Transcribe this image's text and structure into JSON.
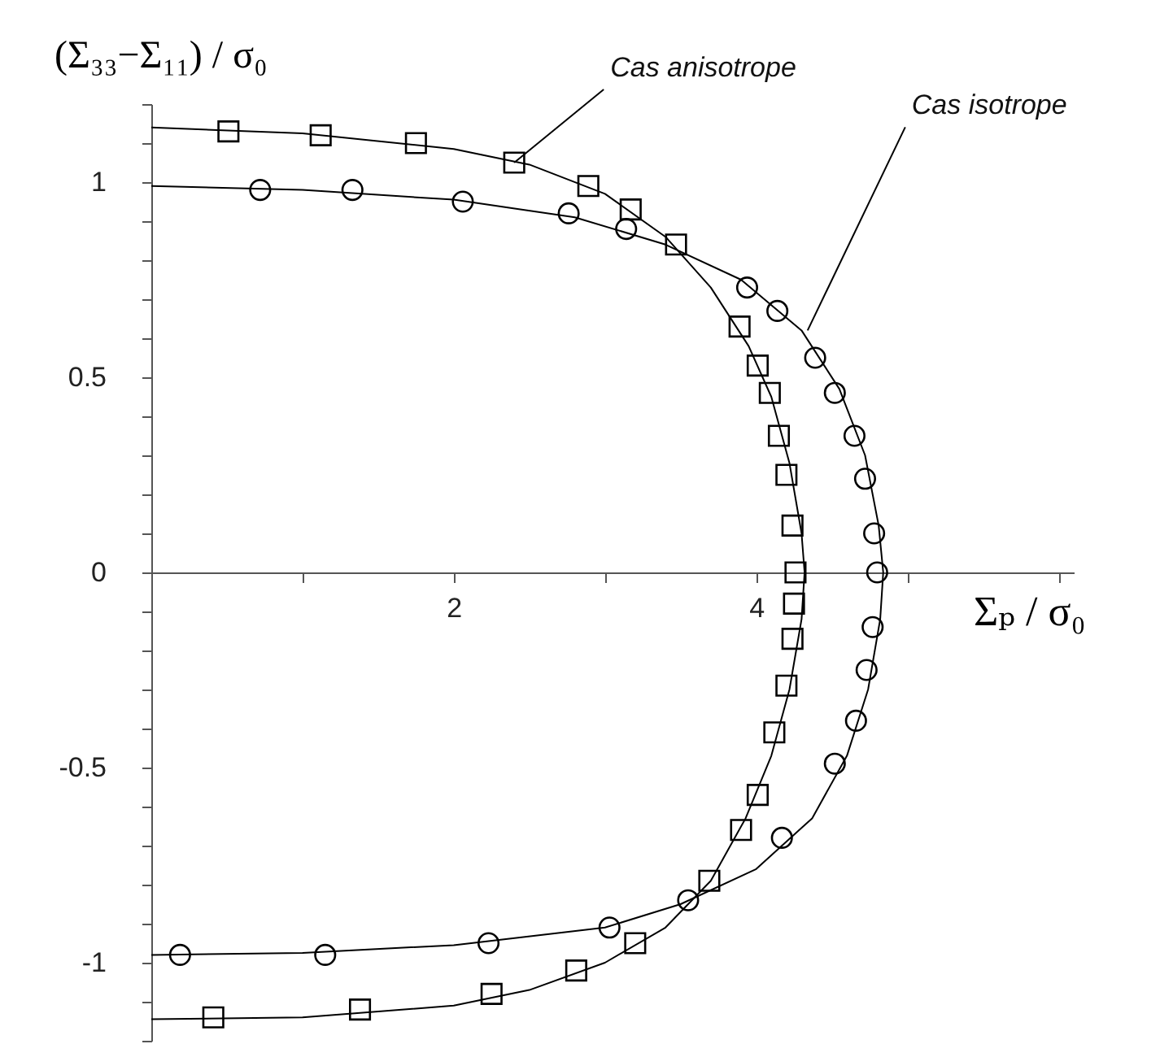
{
  "chart_data": {
    "type": "line",
    "xlabel": "Σₚ / σ₀",
    "ylabel": "(Σ₃₃−Σ₁₁) / σ₀",
    "xlim": [
      0,
      6.1
    ],
    "ylim": [
      -1.2,
      1.2
    ],
    "xticks": [
      {
        "value": 1,
        "label": null
      },
      2,
      {
        "value": 3,
        "label": null
      },
      4,
      {
        "value": 5,
        "label": null
      },
      {
        "value": 6,
        "label": null
      }
    ],
    "yticks": [
      {
        "value": -1.2,
        "label": null
      },
      {
        "value": -1.1,
        "label": null
      },
      -1,
      {
        "value": -0.9,
        "label": null
      },
      {
        "value": -0.8,
        "label": null
      },
      {
        "value": -0.7,
        "label": null
      },
      {
        "value": -0.6,
        "label": null
      },
      -0.5,
      {
        "value": -0.4,
        "label": null
      },
      {
        "value": -0.3,
        "label": null
      },
      {
        "value": -0.2,
        "label": null
      },
      {
        "value": -0.1,
        "label": null
      },
      0,
      {
        "value": 0.1,
        "label": null
      },
      {
        "value": 0.2,
        "label": null
      },
      {
        "value": 0.3,
        "label": null
      },
      {
        "value": 0.4,
        "label": null
      },
      0.5,
      {
        "value": 0.6,
        "label": null
      },
      {
        "value": 0.7,
        "label": null
      },
      {
        "value": 0.8,
        "label": null
      },
      {
        "value": 0.9,
        "label": null
      },
      1,
      {
        "value": 1.1,
        "label": null
      },
      {
        "value": 1.2,
        "label": null
      }
    ],
    "grid": false,
    "series": [
      {
        "type": "line",
        "color": "#000000",
        "x": [
          0,
          1,
          2,
          2.5,
          3,
          3.4,
          3.7,
          3.95,
          4.1,
          4.22,
          4.3,
          4.32,
          4.3,
          4.22,
          4.1,
          3.93,
          3.7,
          3.4,
          3,
          2.5,
          2,
          1,
          0
        ],
        "values": [
          1.14,
          1.125,
          1.085,
          1.045,
          0.97,
          0.86,
          0.73,
          0.58,
          0.45,
          0.28,
          0.1,
          0,
          -0.12,
          -0.3,
          -0.47,
          -0.63,
          -0.79,
          -0.91,
          -1.0,
          -1.07,
          -1.11,
          -1.14,
          -1.145
        ]
      },
      {
        "type": "scatter",
        "marker": "square",
        "color": "#000000",
        "x": [
          0.51,
          1.12,
          1.75,
          2.4,
          2.89,
          3.17,
          3.47,
          3.89,
          4.01,
          4.09,
          4.15,
          4.2,
          4.24,
          4.26,
          4.25,
          4.24,
          4.2,
          4.12,
          4.01,
          3.9,
          3.69,
          3.2,
          2.81,
          2.25,
          1.38,
          0.41
        ],
        "values": [
          1.13,
          1.12,
          1.1,
          1.05,
          0.99,
          0.93,
          0.84,
          0.63,
          0.53,
          0.46,
          0.35,
          0.25,
          0.12,
          0,
          -0.08,
          -0.17,
          -0.29,
          -0.41,
          -0.57,
          -0.66,
          -0.79,
          -0.95,
          -1.02,
          -1.08,
          -1.12,
          -1.14
        ]
      },
      {
        "type": "line",
        "color": "#000000",
        "x": [
          0,
          1,
          2,
          2.8,
          3.4,
          3.9,
          4.3,
          4.55,
          4.72,
          4.81,
          4.84,
          4.82,
          4.74,
          4.6,
          4.37,
          4.0,
          3.5,
          3,
          2,
          1,
          0
        ],
        "values": [
          0.99,
          0.98,
          0.955,
          0.91,
          0.84,
          0.75,
          0.62,
          0.47,
          0.3,
          0.12,
          0,
          -0.12,
          -0.3,
          -0.47,
          -0.63,
          -0.76,
          -0.85,
          -0.91,
          -0.955,
          -0.975,
          -0.98
        ]
      },
      {
        "type": "scatter",
        "marker": "circle",
        "color": "#000000",
        "x": [
          0.72,
          1.33,
          2.06,
          2.76,
          3.14,
          3.94,
          4.14,
          4.39,
          4.52,
          4.65,
          4.72,
          4.78,
          4.8,
          4.77,
          4.73,
          4.66,
          4.52,
          4.17,
          3.55,
          3.03,
          2.23,
          1.15,
          0.19
        ],
        "values": [
          0.98,
          0.98,
          0.95,
          0.92,
          0.88,
          0.73,
          0.67,
          0.55,
          0.46,
          0.35,
          0.24,
          0.1,
          0,
          -0.14,
          -0.25,
          -0.38,
          -0.49,
          -0.68,
          -0.84,
          -0.91,
          -0.95,
          -0.98,
          -0.98
        ]
      }
    ],
    "annotations": [
      {
        "text": "Cas anisotrope",
        "x": 2.4,
        "y": 1.05
      },
      {
        "text": "Cas isotrope",
        "x": 4.34,
        "y": 0.62
      }
    ]
  }
}
